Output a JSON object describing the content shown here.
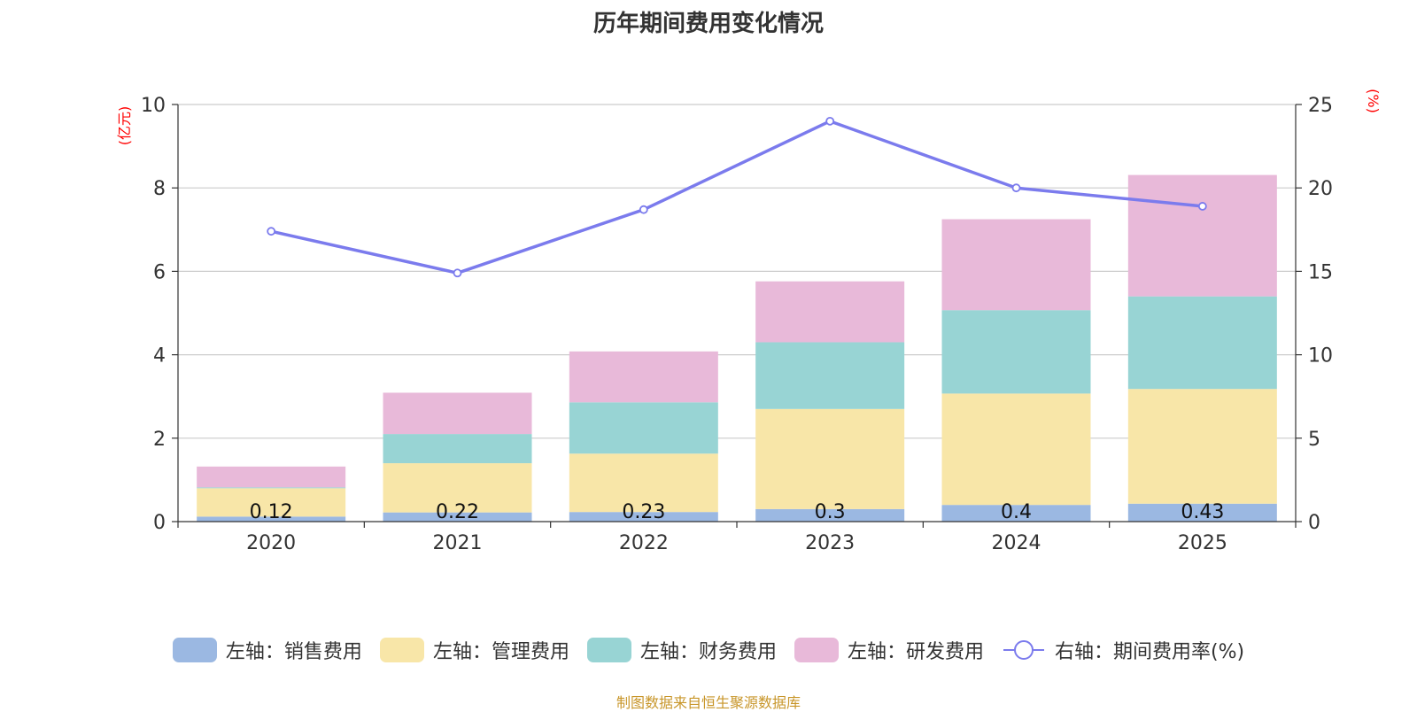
{
  "chart_data": {
    "type": "bar",
    "stacked": true,
    "title": "历年期间费用变化情况",
    "categories": [
      "2020",
      "2021",
      "2022",
      "2023",
      "2024",
      "2025"
    ],
    "left_axis": {
      "unit": "(亿元)",
      "ylim": [
        0,
        10
      ],
      "ticks": [
        "0",
        "2",
        "4",
        "6",
        "8",
        "10"
      ]
    },
    "right_axis": {
      "unit": "(%)",
      "ylim": [
        0,
        25
      ],
      "ticks": [
        "0",
        "5",
        "10",
        "15",
        "20",
        "25"
      ]
    },
    "series": [
      {
        "name": "左轴：销售费用",
        "axis": "left",
        "type": "bar",
        "color": "#9bb8e2",
        "values": [
          0.12,
          0.22,
          0.23,
          0.3,
          0.4,
          0.43
        ],
        "labels": [
          "0.12",
          "0.22",
          "0.23",
          "0.3",
          "0.4",
          "0.43"
        ]
      },
      {
        "name": "左轴：管理费用",
        "axis": "left",
        "type": "bar",
        "color": "#f8e6a8",
        "values": [
          0.68,
          1.18,
          1.4,
          2.4,
          2.67,
          2.75
        ]
      },
      {
        "name": "左轴：财务费用",
        "axis": "left",
        "type": "bar",
        "color": "#98d4d4",
        "values": [
          0.02,
          0.7,
          1.23,
          1.6,
          2.0,
          2.22
        ]
      },
      {
        "name": "左轴：研发费用",
        "axis": "left",
        "type": "bar",
        "color": "#e8b9d9",
        "values": [
          0.5,
          0.99,
          1.22,
          1.46,
          2.18,
          2.91
        ]
      },
      {
        "name": "右轴：期间费用率(%)",
        "axis": "right",
        "type": "line",
        "color": "#7b7bed",
        "values": [
          17.4,
          14.9,
          18.7,
          24.0,
          20.0,
          18.9
        ]
      }
    ],
    "grid": true,
    "legend": "bottom"
  },
  "footer": {
    "source": "制图数据来自恒生聚源数据库"
  }
}
